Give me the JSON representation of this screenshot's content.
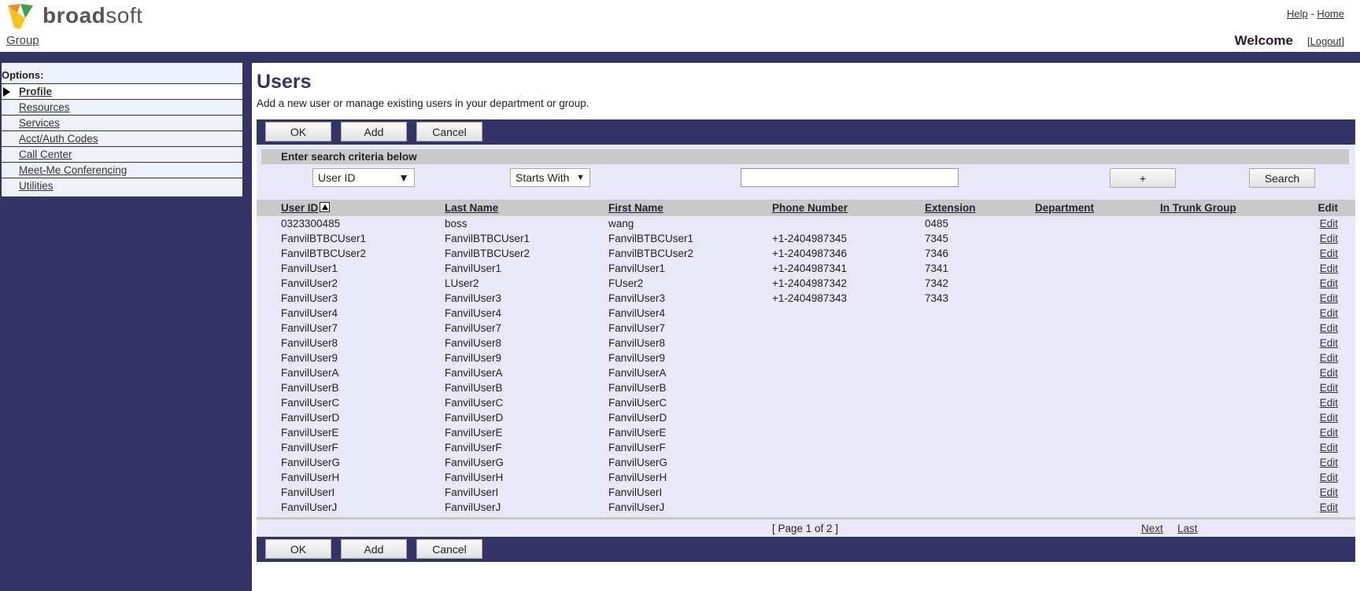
{
  "header": {
    "brand": "broadsoft",
    "group_link": "Group",
    "help": "Help",
    "sep": "-",
    "home": "Home",
    "welcome": "Welcome",
    "logout": "[Logout]"
  },
  "sidebar": {
    "title": "Options:",
    "items": [
      {
        "label": "Profile",
        "active": true
      },
      {
        "label": "Resources"
      },
      {
        "label": "Services"
      },
      {
        "label": "Acct/Auth Codes"
      },
      {
        "label": "Call Center"
      },
      {
        "label": "Meet-Me Conferencing"
      },
      {
        "label": "Utilities"
      }
    ]
  },
  "page": {
    "title": "Users",
    "subtitle": "Add a new user or manage existing users in your department or group."
  },
  "toolbar": {
    "ok": "OK",
    "add": "Add",
    "cancel": "Cancel"
  },
  "search": {
    "header": "Enter search criteria below",
    "field": "User ID",
    "mode": "Starts With",
    "value": "",
    "plus": "+",
    "search": "Search"
  },
  "table": {
    "columns": [
      "User ID",
      "Last Name",
      "First Name",
      "Phone Number",
      "Extension",
      "Department",
      "In Trunk Group",
      "Edit"
    ],
    "rows": [
      [
        "0323300485",
        "boss",
        "wang",
        "",
        "0485",
        "",
        "",
        "Edit"
      ],
      [
        "FanvilBTBCUser1",
        "FanvilBTBCUser1",
        "FanvilBTBCUser1",
        "+1-2404987345",
        "7345",
        "",
        "",
        "Edit"
      ],
      [
        "FanvilBTBCUser2",
        "FanvilBTBCUser2",
        "FanvilBTBCUser2",
        "+1-2404987346",
        "7346",
        "",
        "",
        "Edit"
      ],
      [
        "FanvilUser1",
        "FanvilUser1",
        "FanvilUser1",
        "+1-2404987341",
        "7341",
        "",
        "",
        "Edit"
      ],
      [
        "FanvilUser2",
        "LUser2",
        "FUser2",
        "+1-2404987342",
        "7342",
        "",
        "",
        "Edit"
      ],
      [
        "FanvilUser3",
        "FanvilUser3",
        "FanvilUser3",
        "+1-2404987343",
        "7343",
        "",
        "",
        "Edit"
      ],
      [
        "FanvilUser4",
        "FanvilUser4",
        "FanvilUser4",
        "",
        "",
        "",
        "",
        "Edit"
      ],
      [
        "FanvilUser7",
        "FanvilUser7",
        "FanvilUser7",
        "",
        "",
        "",
        "",
        "Edit"
      ],
      [
        "FanvilUser8",
        "FanvilUser8",
        "FanvilUser8",
        "",
        "",
        "",
        "",
        "Edit"
      ],
      [
        "FanvilUser9",
        "FanvilUser9",
        "FanvilUser9",
        "",
        "",
        "",
        "",
        "Edit"
      ],
      [
        "FanvilUserA",
        "FanvilUserA",
        "FanvilUserA",
        "",
        "",
        "",
        "",
        "Edit"
      ],
      [
        "FanvilUserB",
        "FanvilUserB",
        "FanvilUserB",
        "",
        "",
        "",
        "",
        "Edit"
      ],
      [
        "FanvilUserC",
        "FanvilUserC",
        "FanvilUserC",
        "",
        "",
        "",
        "",
        "Edit"
      ],
      [
        "FanvilUserD",
        "FanvilUserD",
        "FanvilUserD",
        "",
        "",
        "",
        "",
        "Edit"
      ],
      [
        "FanvilUserE",
        "FanvilUserE",
        "FanvilUserE",
        "",
        "",
        "",
        "",
        "Edit"
      ],
      [
        "FanvilUserF",
        "FanvilUserF",
        "FanvilUserF",
        "",
        "",
        "",
        "",
        "Edit"
      ],
      [
        "FanvilUserG",
        "FanvilUserG",
        "FanvilUserG",
        "",
        "",
        "",
        "",
        "Edit"
      ],
      [
        "FanvilUserH",
        "FanvilUserH",
        "FanvilUserH",
        "",
        "",
        "",
        "",
        "Edit"
      ],
      [
        "FanvilUserI",
        "FanvilUserI",
        "FanvilUserI",
        "",
        "",
        "",
        "",
        "Edit"
      ],
      [
        "FanvilUserJ",
        "FanvilUserJ",
        "FanvilUserJ",
        "",
        "",
        "",
        "",
        "Edit"
      ]
    ]
  },
  "pager": {
    "status": "[ Page 1 of 2 ]",
    "next": "Next",
    "last": "Last"
  },
  "colors": {
    "navy": "#333366",
    "panel": "#e8e8f8",
    "header_gray": "#c9c9c9"
  }
}
